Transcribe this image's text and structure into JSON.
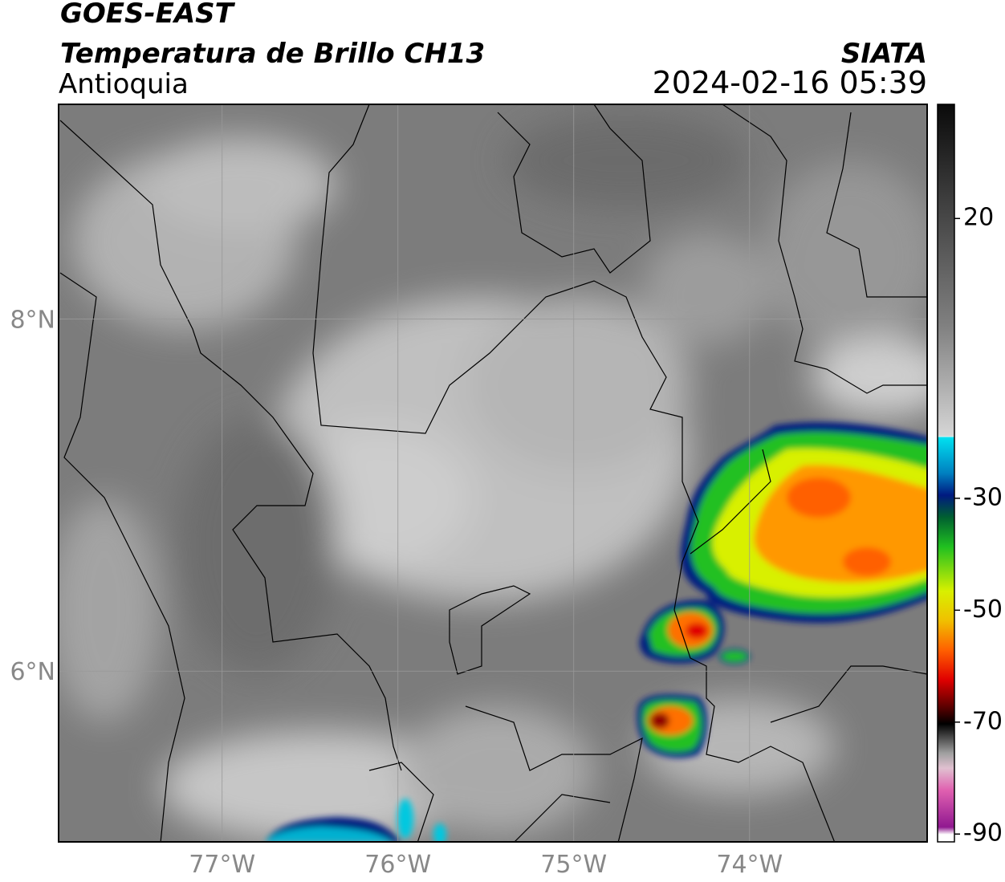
{
  "header": {
    "satellite": "GOES-EAST",
    "product": "Temperatura de Brillo CH13",
    "region": "Antioquia",
    "agency": "SIATA",
    "datetime": "2024-02-16 05:39"
  },
  "map": {
    "xlim": [
      -77.93,
      -72.99
    ],
    "ylim": [
      5.03,
      9.22
    ],
    "xticks": [
      {
        "value": -77,
        "label": "77°W"
      },
      {
        "value": -76,
        "label": "76°W"
      },
      {
        "value": -75,
        "label": "75°W"
      },
      {
        "value": -74,
        "label": "74°W"
      }
    ],
    "yticks": [
      {
        "value": 6,
        "label": "6°N"
      },
      {
        "value": 8,
        "label": "8°N"
      }
    ],
    "grid": true
  },
  "colorbar": {
    "lim": [
      -91.4,
      40.4
    ],
    "ticks": [
      20,
      -30,
      -50,
      -70,
      -90
    ]
  }
}
